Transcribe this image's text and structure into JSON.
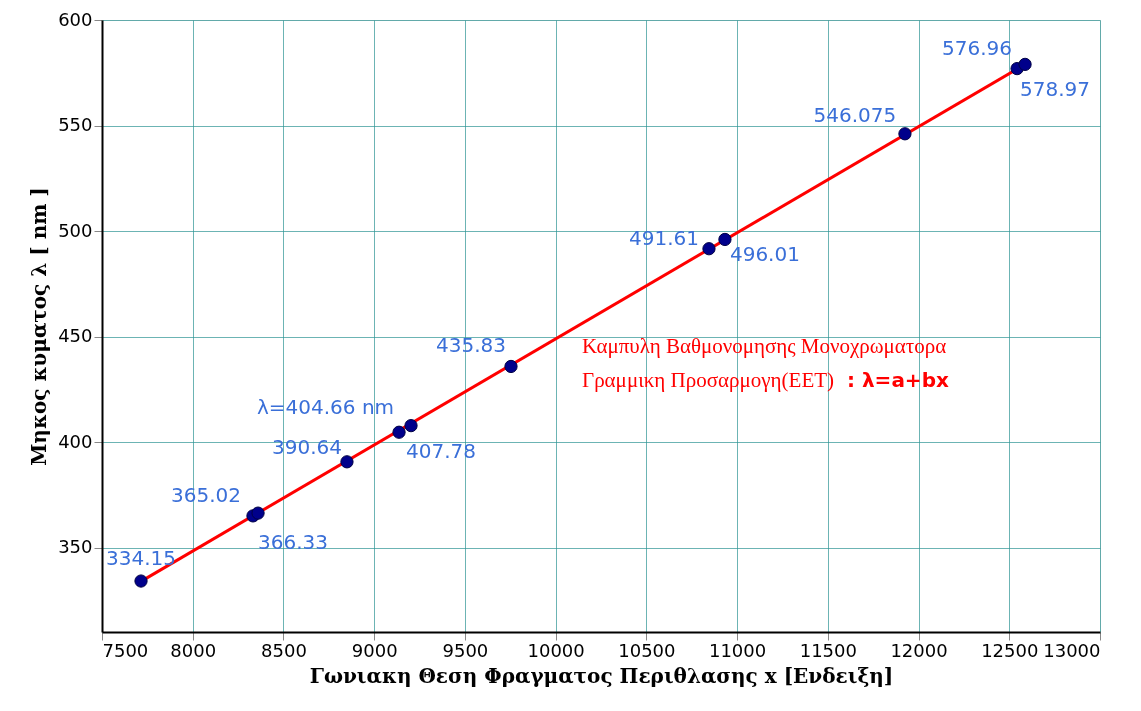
{
  "chart_data": {
    "type": "scatter",
    "xlabel": "Γωνιακη Θεση Φραγματος Περιθλασης x [Ενδειξη]",
    "ylabel": "Μηκος κυματος λ [ nm ]",
    "series": [
      {
        "type": "line",
        "color": "#ff0000",
        "x": [
          7715,
          12587
        ],
        "values": [
          334,
          579
        ]
      },
      {
        "color": "#00008b",
        "marker": "circle",
        "x": [
          7715,
          8332,
          8360,
          8850,
          9137,
          9203,
          9754,
          10845,
          10933,
          11925,
          12543,
          12587
        ],
        "values": [
          334.15,
          365.02,
          366.33,
          390.64,
          404.66,
          407.78,
          435.83,
          491.61,
          496.01,
          546.075,
          576.96,
          578.97
        ],
        "value_labels": [
          "334.15",
          "365.02",
          "366.33",
          "390.64",
          "λ=404.66 nm",
          "407.78",
          "435.83",
          "491.61",
          "496.01",
          "546.075",
          "576.96",
          "578.97"
        ]
      }
    ],
    "annotations": [
      "Καμπυλη Βαθμονομησης Μονοχρωματορα",
      "Γραμμικη Προσαρμογη(ΕΕΤ)",
      ": λ=a+bx"
    ],
    "xlim": [
      7500,
      13000
    ],
    "xticks": [
      7500,
      8000,
      8500,
      9000,
      9500,
      10000,
      10500,
      11000,
      11500,
      12000,
      12500,
      13000
    ],
    "ylim": [
      310,
      600
    ],
    "yticks": [
      350,
      400,
      450,
      500,
      550,
      600
    ],
    "grid": true
  }
}
